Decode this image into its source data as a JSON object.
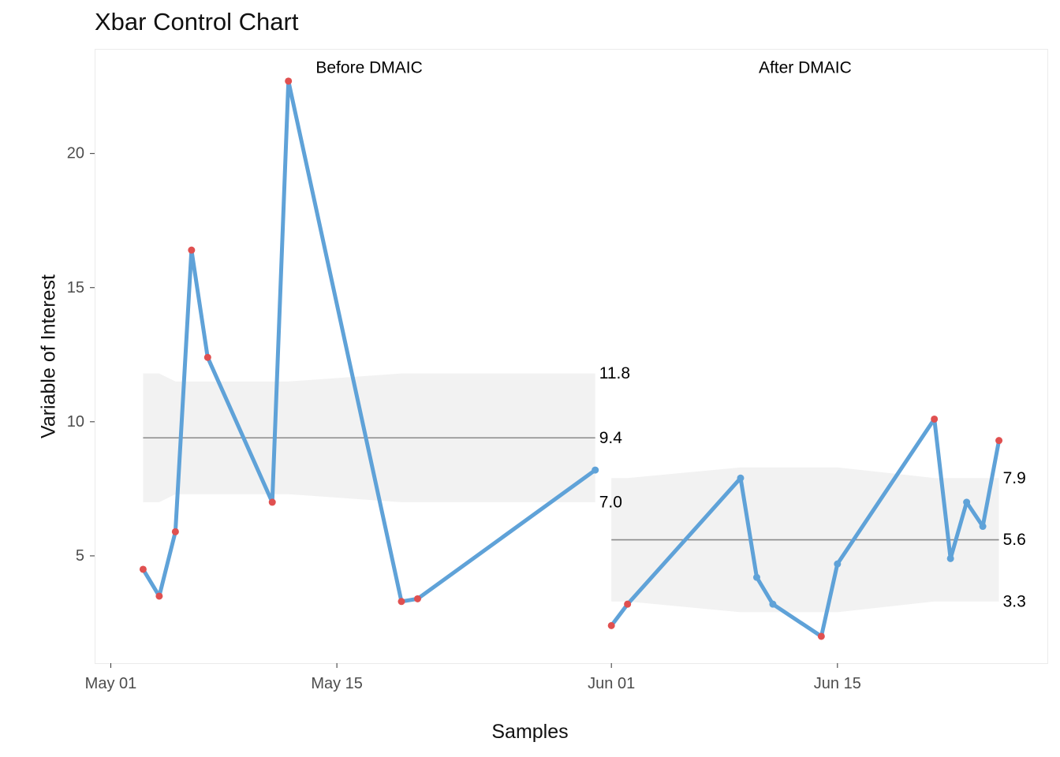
{
  "chart_data": {
    "type": "line",
    "title": "Xbar Control Chart",
    "xlabel": "Samples",
    "ylabel": "Variable of Interest",
    "x_ticks": [
      {
        "date": "2023-05-01",
        "label": "May 01"
      },
      {
        "date": "2023-05-15",
        "label": "May 15"
      },
      {
        "date": "2023-06-01",
        "label": "Jun 01"
      },
      {
        "date": "2023-06-15",
        "label": "Jun 15"
      }
    ],
    "y_ticks": [
      5,
      10,
      15,
      20
    ],
    "xlim": [
      "2023-04-30",
      "2023-06-28"
    ],
    "ylim": [
      1,
      23.9
    ],
    "grid": false,
    "colors": {
      "line": "#5fa2d8",
      "out_of_control": "#e05050",
      "band": "#f2f2f2",
      "center_line": "#8a8a8a"
    },
    "phases": [
      {
        "name": "Before DMAIC",
        "center": 9.4,
        "ucl": 11.8,
        "lcl": 7.0,
        "center_label": "9.4",
        "ucl_label": "11.8",
        "lcl_label": "7.0",
        "points": [
          {
            "x": "2023-05-03",
            "y": 4.5,
            "out_of_control": true
          },
          {
            "x": "2023-05-04",
            "y": 3.5,
            "out_of_control": true
          },
          {
            "x": "2023-05-05",
            "y": 5.9,
            "out_of_control": true
          },
          {
            "x": "2023-05-06",
            "y": 16.4,
            "out_of_control": true
          },
          {
            "x": "2023-05-07",
            "y": 12.4,
            "out_of_control": true
          },
          {
            "x": "2023-05-11",
            "y": 7.0,
            "out_of_control": true
          },
          {
            "x": "2023-05-12",
            "y": 22.7,
            "out_of_control": true
          },
          {
            "x": "2023-05-19",
            "y": 3.3,
            "out_of_control": true
          },
          {
            "x": "2023-05-20",
            "y": 3.4,
            "out_of_control": true
          },
          {
            "x": "2023-05-31",
            "y": 8.2,
            "out_of_control": false
          }
        ],
        "band": [
          {
            "x": "2023-05-03",
            "ucl": 11.8,
            "lcl": 7.0
          },
          {
            "x": "2023-05-04",
            "ucl": 11.8,
            "lcl": 7.0
          },
          {
            "x": "2023-05-05",
            "ucl": 11.5,
            "lcl": 7.3
          },
          {
            "x": "2023-05-11",
            "ucl": 11.5,
            "lcl": 7.3
          },
          {
            "x": "2023-05-12",
            "ucl": 11.5,
            "lcl": 7.3
          },
          {
            "x": "2023-05-19",
            "ucl": 11.8,
            "lcl": 7.0
          },
          {
            "x": "2023-05-31",
            "ucl": 11.8,
            "lcl": 7.0
          }
        ]
      },
      {
        "name": "After DMAIC",
        "center": 5.6,
        "ucl": 7.9,
        "lcl": 3.3,
        "center_label": "5.6",
        "ucl_label": "7.9",
        "lcl_label": "3.3",
        "points": [
          {
            "x": "2023-06-01",
            "y": 2.4,
            "out_of_control": true
          },
          {
            "x": "2023-06-02",
            "y": 3.2,
            "out_of_control": true
          },
          {
            "x": "2023-06-09",
            "y": 7.9,
            "out_of_control": false
          },
          {
            "x": "2023-06-10",
            "y": 4.2,
            "out_of_control": false
          },
          {
            "x": "2023-06-11",
            "y": 3.2,
            "out_of_control": false
          },
          {
            "x": "2023-06-14",
            "y": 2.0,
            "out_of_control": true
          },
          {
            "x": "2023-06-15",
            "y": 4.7,
            "out_of_control": false
          },
          {
            "x": "2023-06-21",
            "y": 10.1,
            "out_of_control": true
          },
          {
            "x": "2023-06-22",
            "y": 4.9,
            "out_of_control": false
          },
          {
            "x": "2023-06-23",
            "y": 7.0,
            "out_of_control": false
          },
          {
            "x": "2023-06-24",
            "y": 6.1,
            "out_of_control": false
          },
          {
            "x": "2023-06-25",
            "y": 9.3,
            "out_of_control": true
          }
        ],
        "band": [
          {
            "x": "2023-06-01",
            "ucl": 7.9,
            "lcl": 3.3
          },
          {
            "x": "2023-06-02",
            "ucl": 7.9,
            "lcl": 3.3
          },
          {
            "x": "2023-06-09",
            "ucl": 8.3,
            "lcl": 2.9
          },
          {
            "x": "2023-06-15",
            "ucl": 8.3,
            "lcl": 2.9
          },
          {
            "x": "2023-06-21",
            "ucl": 7.9,
            "lcl": 3.3
          },
          {
            "x": "2023-06-25",
            "ucl": 7.9,
            "lcl": 3.3
          }
        ]
      }
    ]
  }
}
